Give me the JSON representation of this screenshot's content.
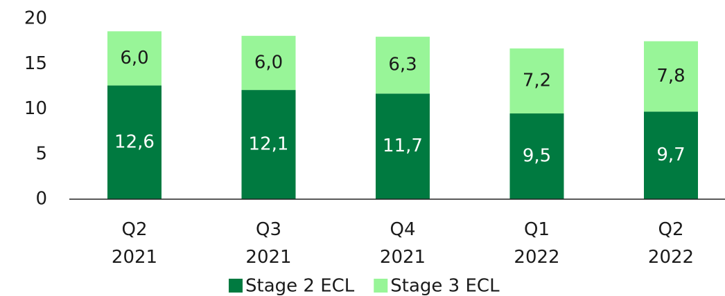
{
  "chart_data": {
    "type": "stacked_bar",
    "categories": [
      "Q2\n2021",
      "Q3\n2021",
      "Q4\n2021",
      "Q1\n2022",
      "Q2\n2022"
    ],
    "series": [
      {
        "name": "Stage 2 ECL",
        "color": "#007a40",
        "values": [
          12.6,
          12.1,
          11.7,
          9.5,
          9.7
        ],
        "value_labels": [
          "12,6",
          "12,1",
          "11,7",
          "9,5",
          "9,7"
        ]
      },
      {
        "name": "Stage 3 ECL",
        "color": "#98f598",
        "values": [
          6.0,
          6.0,
          6.3,
          7.2,
          7.8
        ],
        "value_labels": [
          "6,0",
          "6,0",
          "6,3",
          "7,2",
          "7,8"
        ]
      }
    ],
    "ylim": [
      0,
      20
    ],
    "yticks": [
      0,
      5,
      10,
      15,
      20
    ],
    "grid": false
  }
}
